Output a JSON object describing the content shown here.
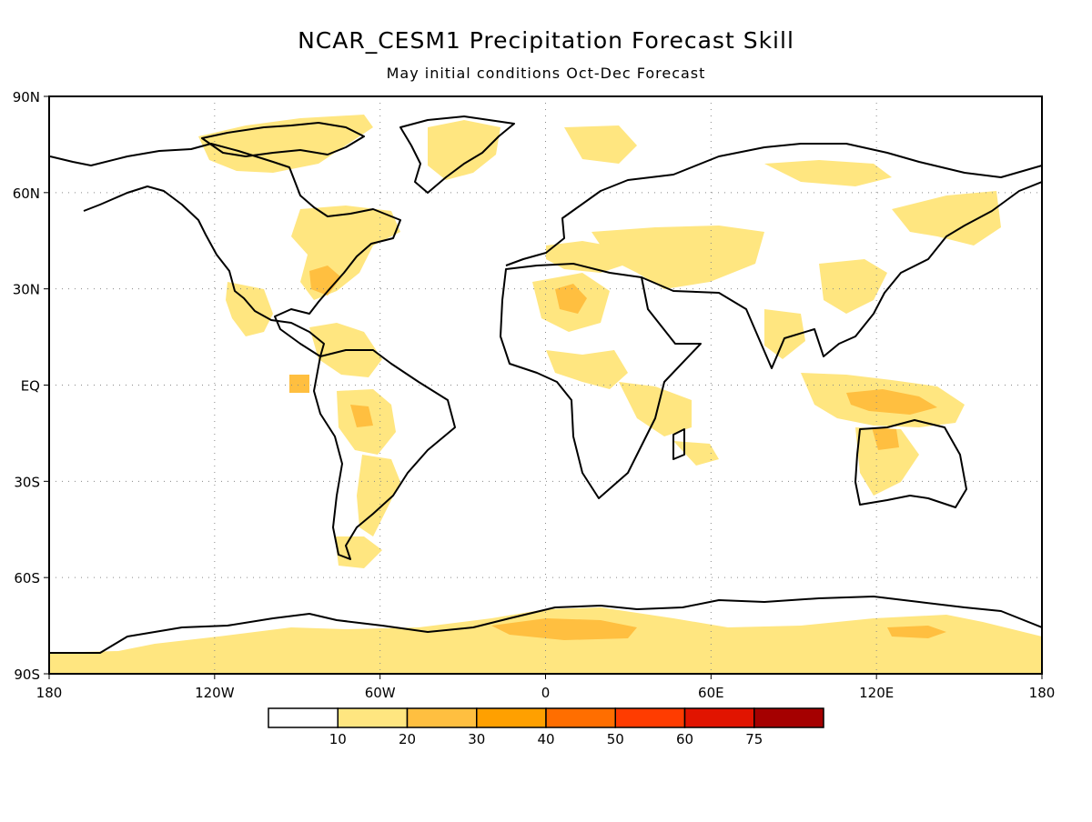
{
  "title": "NCAR_CESM1 Precipitation Forecast Skill",
  "subtitle": "May initial conditions   Oct-Dec Forecast",
  "map": {
    "projection": "equirectangular",
    "lon_range": [
      -180,
      180
    ],
    "lat_range": [
      -90,
      90
    ],
    "grid": "dotted, every 60° longitude and 30° latitude",
    "land_outline_color": "#000000",
    "ocean_color": "#ffffff",
    "lat_ticks": [
      "90N",
      "60N",
      "30N",
      "EQ",
      "30S",
      "60S",
      "90S"
    ],
    "lon_ticks": [
      "180",
      "120W",
      "60W",
      "0",
      "60E",
      "120E",
      "180"
    ]
  },
  "colorbar": {
    "labels": [
      "10",
      "20",
      "30",
      "40",
      "50",
      "60",
      "75"
    ],
    "colors": [
      "#ffffff",
      "#ffe680",
      "#ffbf40",
      "#ffa000",
      "#ff6e00",
      "#ff3c00",
      "#e11400",
      "#a50000"
    ]
  },
  "skill_regions": [
    {
      "region": "Antarctica interior",
      "class": 1
    },
    {
      "region": "Antarctica interior east",
      "class": 2
    },
    {
      "region": "Greenland / Arctic",
      "class": 1
    },
    {
      "region": "Eastern United States",
      "class": 2
    },
    {
      "region": "Mexico",
      "class": 1
    },
    {
      "region": "Central America / Caribbean",
      "class": 1
    },
    {
      "region": "Amazon basin",
      "class": 1
    },
    {
      "region": "Southern South America",
      "class": 1
    },
    {
      "region": "Sahara",
      "class": 2
    },
    {
      "region": "Mediterranean",
      "class": 1
    },
    {
      "region": "Central Asia",
      "class": 1
    },
    {
      "region": "East Asia",
      "class": 1
    },
    {
      "region": "Maritime Continent",
      "class": 2
    },
    {
      "region": "Northern Australia",
      "class": 1
    },
    {
      "region": "Siberia",
      "class": 1
    }
  ]
}
